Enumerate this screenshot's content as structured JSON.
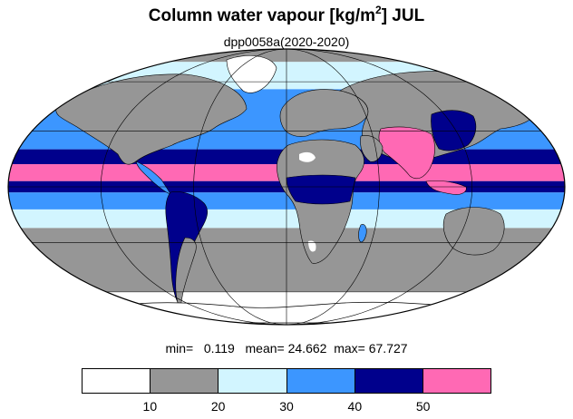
{
  "title": {
    "main": "Column water vapour [kg/m",
    "superscript": "2",
    "suffix": "] JUL"
  },
  "subtitle": "dpp0058a(2020-2020)",
  "stats": {
    "min_label": "min=",
    "min_value": "0.119",
    "mean_label": "mean=",
    "mean_value": "24.662",
    "max_label": "max=",
    "max_value": "67.727"
  },
  "colorbar": {
    "colors": [
      "#ffffff",
      "#969696",
      "#d2f5ff",
      "#3c96ff",
      "#00008c",
      "#ff69b4"
    ],
    "tick_labels": [
      "10",
      "20",
      "30",
      "40",
      "50"
    ]
  },
  "map": {
    "projection": "Mollweide",
    "graticule": true,
    "bands": [
      {
        "from_lat": 90,
        "to_lat": 75,
        "color": "#969696"
      },
      {
        "from_lat": 75,
        "to_lat": 55,
        "color": "#d2f5ff"
      },
      {
        "from_lat": 55,
        "to_lat": 30,
        "color": "#3c96ff"
      },
      {
        "from_lat": 30,
        "to_lat": 20,
        "color": "#3c96ff"
      },
      {
        "from_lat": 20,
        "to_lat": 12,
        "color": "#00008c"
      },
      {
        "from_lat": 12,
        "to_lat": 3,
        "color": "#ff69b4"
      },
      {
        "from_lat": 3,
        "to_lat": -3,
        "color": "#00008c"
      },
      {
        "from_lat": -3,
        "to_lat": -12,
        "color": "#3c96ff"
      },
      {
        "from_lat": -12,
        "to_lat": -22,
        "color": "#d2f5ff"
      },
      {
        "from_lat": -22,
        "to_lat": -60,
        "color": "#969696"
      },
      {
        "from_lat": -60,
        "to_lat": -90,
        "color": "#ffffff"
      }
    ]
  }
}
